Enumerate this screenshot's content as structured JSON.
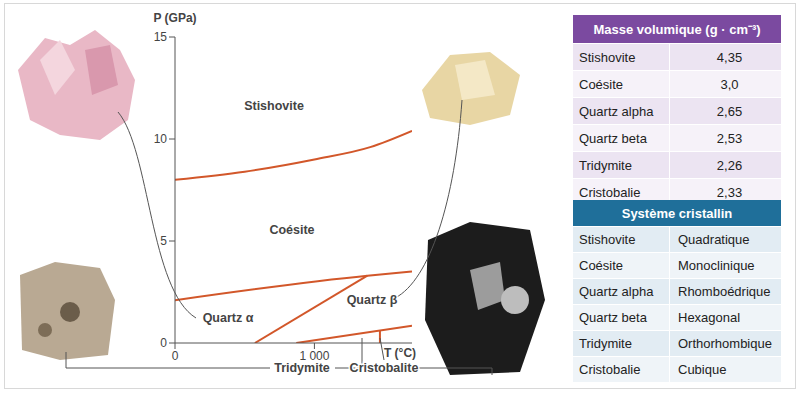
{
  "chart_data": {
    "type": "line",
    "xlabel": "T (°C)",
    "ylabel": "P (GPa)",
    "xlim": [
      0,
      1700
    ],
    "xticks": [
      0,
      {
        "value": 1000,
        "label": "1 000"
      }
    ],
    "ylim": [
      0,
      15
    ],
    "yticks": [
      0,
      5,
      10,
      15
    ],
    "grid": false,
    "color": "#d2572a",
    "series": [
      {
        "x": [
          0,
          500,
          1000,
          1400,
          1700
        ],
        "values": [
          8.0,
          8.4,
          9.0,
          9.6,
          10.4
        ]
      },
      {
        "x": [
          0,
          1380,
          1700
        ],
        "values": [
          2.1,
          3.3,
          3.5
        ]
      },
      {
        "x": [
          573,
          1380
        ],
        "values": [
          0,
          3.3
        ]
      },
      {
        "x": [
          870,
          1700
        ],
        "values": [
          0,
          0.85
        ]
      },
      {
        "x": [
          1470,
          1470
        ],
        "values": [
          0,
          0.6
        ]
      }
    ],
    "annotations": [
      "Stishovite",
      "Coésite",
      "Quartz α",
      "Quartz β",
      "Tridymite",
      "Cristobalite"
    ]
  },
  "tables": [
    {
      "title": "Masse volumique (g · cm⁻³)",
      "rows": [
        [
          "Stishovite",
          "4,35"
        ],
        [
          "Coésite",
          "3,0"
        ],
        [
          "Quartz alpha",
          "2,65"
        ],
        [
          "Quartz beta",
          "2,53"
        ],
        [
          "Tridymite",
          "2,26"
        ],
        [
          "Cristobalie",
          "2,33"
        ]
      ]
    },
    {
      "title": "Système cristallin",
      "rows": [
        [
          "Stishovite",
          "Quadratique"
        ],
        [
          "Coésite",
          "Monoclinique"
        ],
        [
          "Quartz alpha",
          "Rhomboédrique"
        ],
        [
          "Quartz beta",
          "Hexagonal"
        ],
        [
          "Tridymite",
          "Orthorhombique"
        ],
        [
          "Cristobalie",
          "Cubique"
        ]
      ]
    }
  ]
}
